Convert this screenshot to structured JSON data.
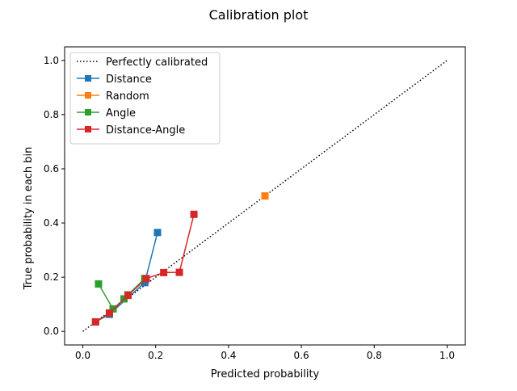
{
  "chart_data": {
    "type": "line",
    "title": "Calibration plot",
    "xlabel": "Predicted probability",
    "ylabel": "True probability in each bin",
    "xlim": [
      -0.05,
      1.05
    ],
    "ylim": [
      -0.05,
      1.05
    ],
    "xticks": [
      0.0,
      0.2,
      0.4,
      0.6,
      0.8,
      1.0
    ],
    "yticks": [
      0.0,
      0.2,
      0.4,
      0.6,
      0.8,
      1.0
    ],
    "xtick_labels": [
      "0.0",
      "0.2",
      "0.4",
      "0.6",
      "0.8",
      "1.0"
    ],
    "ytick_labels": [
      "0.0",
      "0.2",
      "0.4",
      "0.6",
      "0.8",
      "1.0"
    ],
    "grid": false,
    "legend_position": "top-left",
    "series": [
      {
        "name": "Perfectly calibrated",
        "color": "#000000",
        "style": "dotted",
        "marker": "none",
        "points": [
          [
            0.0,
            0.0
          ],
          [
            1.0,
            1.0
          ]
        ]
      },
      {
        "name": "Distance",
        "color": "#1f77b4",
        "style": "solid",
        "marker": "square",
        "points": [
          [
            0.035,
            0.035
          ],
          [
            0.073,
            0.063
          ],
          [
            0.17,
            0.18
          ],
          [
            0.205,
            0.365
          ]
        ]
      },
      {
        "name": "Random",
        "color": "#ff7f0e",
        "style": "solid",
        "marker": "square",
        "points": [
          [
            0.5,
            0.5
          ]
        ]
      },
      {
        "name": "Angle",
        "color": "#2ca02c",
        "style": "solid",
        "marker": "square",
        "points": [
          [
            0.043,
            0.175
          ],
          [
            0.083,
            0.083
          ],
          [
            0.113,
            0.12
          ],
          [
            0.124,
            0.135
          ],
          [
            0.17,
            0.195
          ]
        ]
      },
      {
        "name": "Distance-Angle",
        "color": "#d62728",
        "style": "solid",
        "marker": "square",
        "points": [
          [
            0.035,
            0.035
          ],
          [
            0.073,
            0.068
          ],
          [
            0.124,
            0.133
          ],
          [
            0.174,
            0.195
          ],
          [
            0.222,
            0.217
          ],
          [
            0.265,
            0.218
          ],
          [
            0.305,
            0.432
          ]
        ]
      }
    ]
  }
}
